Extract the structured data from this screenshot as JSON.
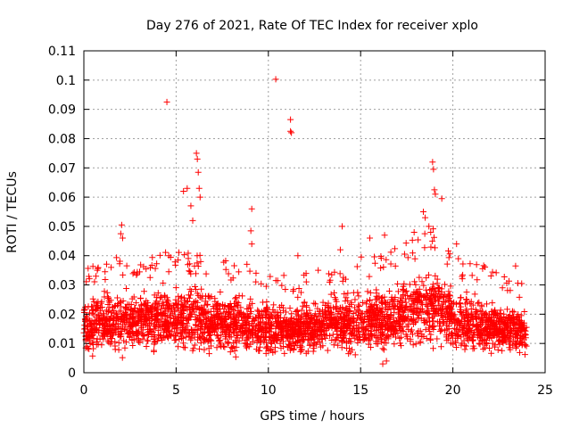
{
  "chart_data": {
    "type": "scatter",
    "title": "Day 276 of 2021, Rate Of TEC Index for receiver xplo",
    "xlabel": "GPS time / hours",
    "ylabel": "ROTI / TECUs",
    "xlim": [
      0,
      25
    ],
    "ylim": [
      0,
      0.11
    ],
    "x_ticks": [
      0,
      5,
      10,
      15,
      20,
      25
    ],
    "x_tick_labels": [
      "0",
      "5",
      "10",
      "15",
      "20",
      "25"
    ],
    "y_ticks": [
      0,
      0.01,
      0.02,
      0.03,
      0.04,
      0.05,
      0.06,
      0.07,
      0.08,
      0.09,
      0.1,
      0.11
    ],
    "y_tick_labels": [
      "0",
      "0.01",
      "0.02",
      "0.03",
      "0.04",
      "0.05",
      "0.06",
      "0.07",
      "0.08",
      "0.09",
      "0.1",
      "0.11"
    ],
    "grid": true,
    "marker": "+",
    "marker_color": "#ff0000",
    "data_range_x": [
      0,
      24
    ],
    "band_profile": [
      {
        "x": 0,
        "low": 0.008,
        "high": 0.028
      },
      {
        "x": 2,
        "low": 0.007,
        "high": 0.032
      },
      {
        "x": 4,
        "low": 0.008,
        "high": 0.035
      },
      {
        "x": 6,
        "low": 0.008,
        "high": 0.033
      },
      {
        "x": 8,
        "low": 0.008,
        "high": 0.03
      },
      {
        "x": 10,
        "low": 0.007,
        "high": 0.028
      },
      {
        "x": 12,
        "low": 0.007,
        "high": 0.027
      },
      {
        "x": 14,
        "low": 0.008,
        "high": 0.03
      },
      {
        "x": 16,
        "low": 0.008,
        "high": 0.033
      },
      {
        "x": 18,
        "low": 0.009,
        "high": 0.038
      },
      {
        "x": 19,
        "low": 0.01,
        "high": 0.042
      },
      {
        "x": 20,
        "low": 0.008,
        "high": 0.033
      },
      {
        "x": 22,
        "low": 0.008,
        "high": 0.028
      },
      {
        "x": 24,
        "low": 0.007,
        "high": 0.024
      }
    ],
    "outliers": [
      {
        "x": 4.5,
        "y": 0.0925
      },
      {
        "x": 10.4,
        "y": 0.1003
      },
      {
        "x": 11.2,
        "y": 0.0865
      },
      {
        "x": 11.2,
        "y": 0.0825
      },
      {
        "x": 11.25,
        "y": 0.082
      },
      {
        "x": 6.1,
        "y": 0.075
      },
      {
        "x": 6.15,
        "y": 0.073
      },
      {
        "x": 6.2,
        "y": 0.0685
      },
      {
        "x": 6.25,
        "y": 0.063
      },
      {
        "x": 5.4,
        "y": 0.062
      },
      {
        "x": 5.6,
        "y": 0.063
      },
      {
        "x": 5.8,
        "y": 0.057
      },
      {
        "x": 5.9,
        "y": 0.052
      },
      {
        "x": 6.3,
        "y": 0.06
      },
      {
        "x": 18.9,
        "y": 0.072
      },
      {
        "x": 18.95,
        "y": 0.0695
      },
      {
        "x": 19.0,
        "y": 0.0625
      },
      {
        "x": 19.05,
        "y": 0.061
      },
      {
        "x": 19.4,
        "y": 0.0595
      },
      {
        "x": 18.4,
        "y": 0.055
      },
      {
        "x": 18.5,
        "y": 0.053
      },
      {
        "x": 18.7,
        "y": 0.05
      },
      {
        "x": 18.8,
        "y": 0.048
      },
      {
        "x": 9.1,
        "y": 0.056
      },
      {
        "x": 9.05,
        "y": 0.0485
      },
      {
        "x": 9.1,
        "y": 0.044
      },
      {
        "x": 2.05,
        "y": 0.0505
      },
      {
        "x": 2.0,
        "y": 0.0475
      },
      {
        "x": 2.1,
        "y": 0.046
      },
      {
        "x": 14.0,
        "y": 0.05
      },
      {
        "x": 16.3,
        "y": 0.047
      },
      {
        "x": 15.5,
        "y": 0.046
      },
      {
        "x": 17.9,
        "y": 0.048
      },
      {
        "x": 20.2,
        "y": 0.044
      },
      {
        "x": 23.4,
        "y": 0.0365
      },
      {
        "x": 16.2,
        "y": 0.003
      },
      {
        "x": 16.4,
        "y": 0.004
      },
      {
        "x": 11.6,
        "y": 0.04
      },
      {
        "x": 13.9,
        "y": 0.042
      },
      {
        "x": 4.6,
        "y": 0.04
      }
    ]
  }
}
